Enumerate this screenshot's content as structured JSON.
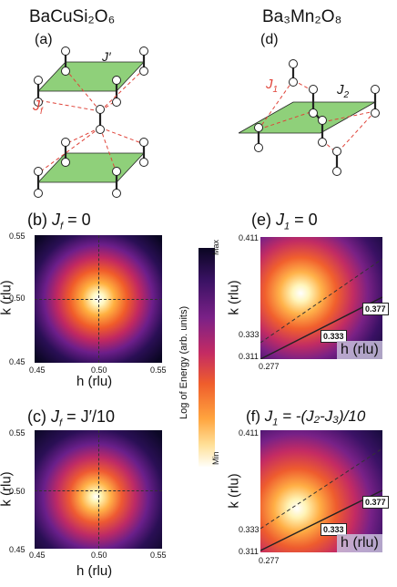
{
  "top": {
    "left_compound": "BaCuSi₂O₆",
    "right_compound": "Ba₃Mn₂O₈",
    "panel_a_tag": "(a)",
    "panel_d_tag": "(d)",
    "label_Jprime": "J′",
    "label_Jf": "J",
    "label_Jf_sub": "f",
    "label_J1": "J",
    "label_J1_sub": "1",
    "label_J2": "J",
    "label_J2_sub": "2"
  },
  "panels": {
    "b": {
      "tag": "(b)",
      "formula": "J",
      "formula_sub": "f",
      "formula_rest": " = 0"
    },
    "c": {
      "tag": "(c)",
      "formula": "J",
      "formula_sub": "f",
      "formula_rest": " = J′/10"
    },
    "e": {
      "tag": "(e)",
      "formula": "J",
      "formula_sub": "1",
      "formula_rest": " = 0"
    },
    "f": {
      "tag": "(f)",
      "formula": "J",
      "formula_sub": "1",
      "formula_rest": " = -(J₂-J₃)/10"
    }
  },
  "axes_left": {
    "xlabel": "h (rlu)",
    "ylabel": "k (rlu)",
    "x_ticks": [
      "0.45",
      "0.50",
      "0.55"
    ],
    "y_ticks": [
      "0.55",
      "0.50",
      "0.45"
    ]
  },
  "axes_right": {
    "xlabel": "h (rlu)",
    "ylabel": "k (rlu)",
    "x_tick_min": "0.277",
    "y_ticks": [
      "0.411",
      "0.333",
      "0.311"
    ],
    "badge_high": "0.377",
    "badge_mid": "0.333"
  },
  "colorbar": {
    "label": "Log of Energy (arb. units)",
    "max_label": "Max",
    "min_label": "Min"
  }
}
